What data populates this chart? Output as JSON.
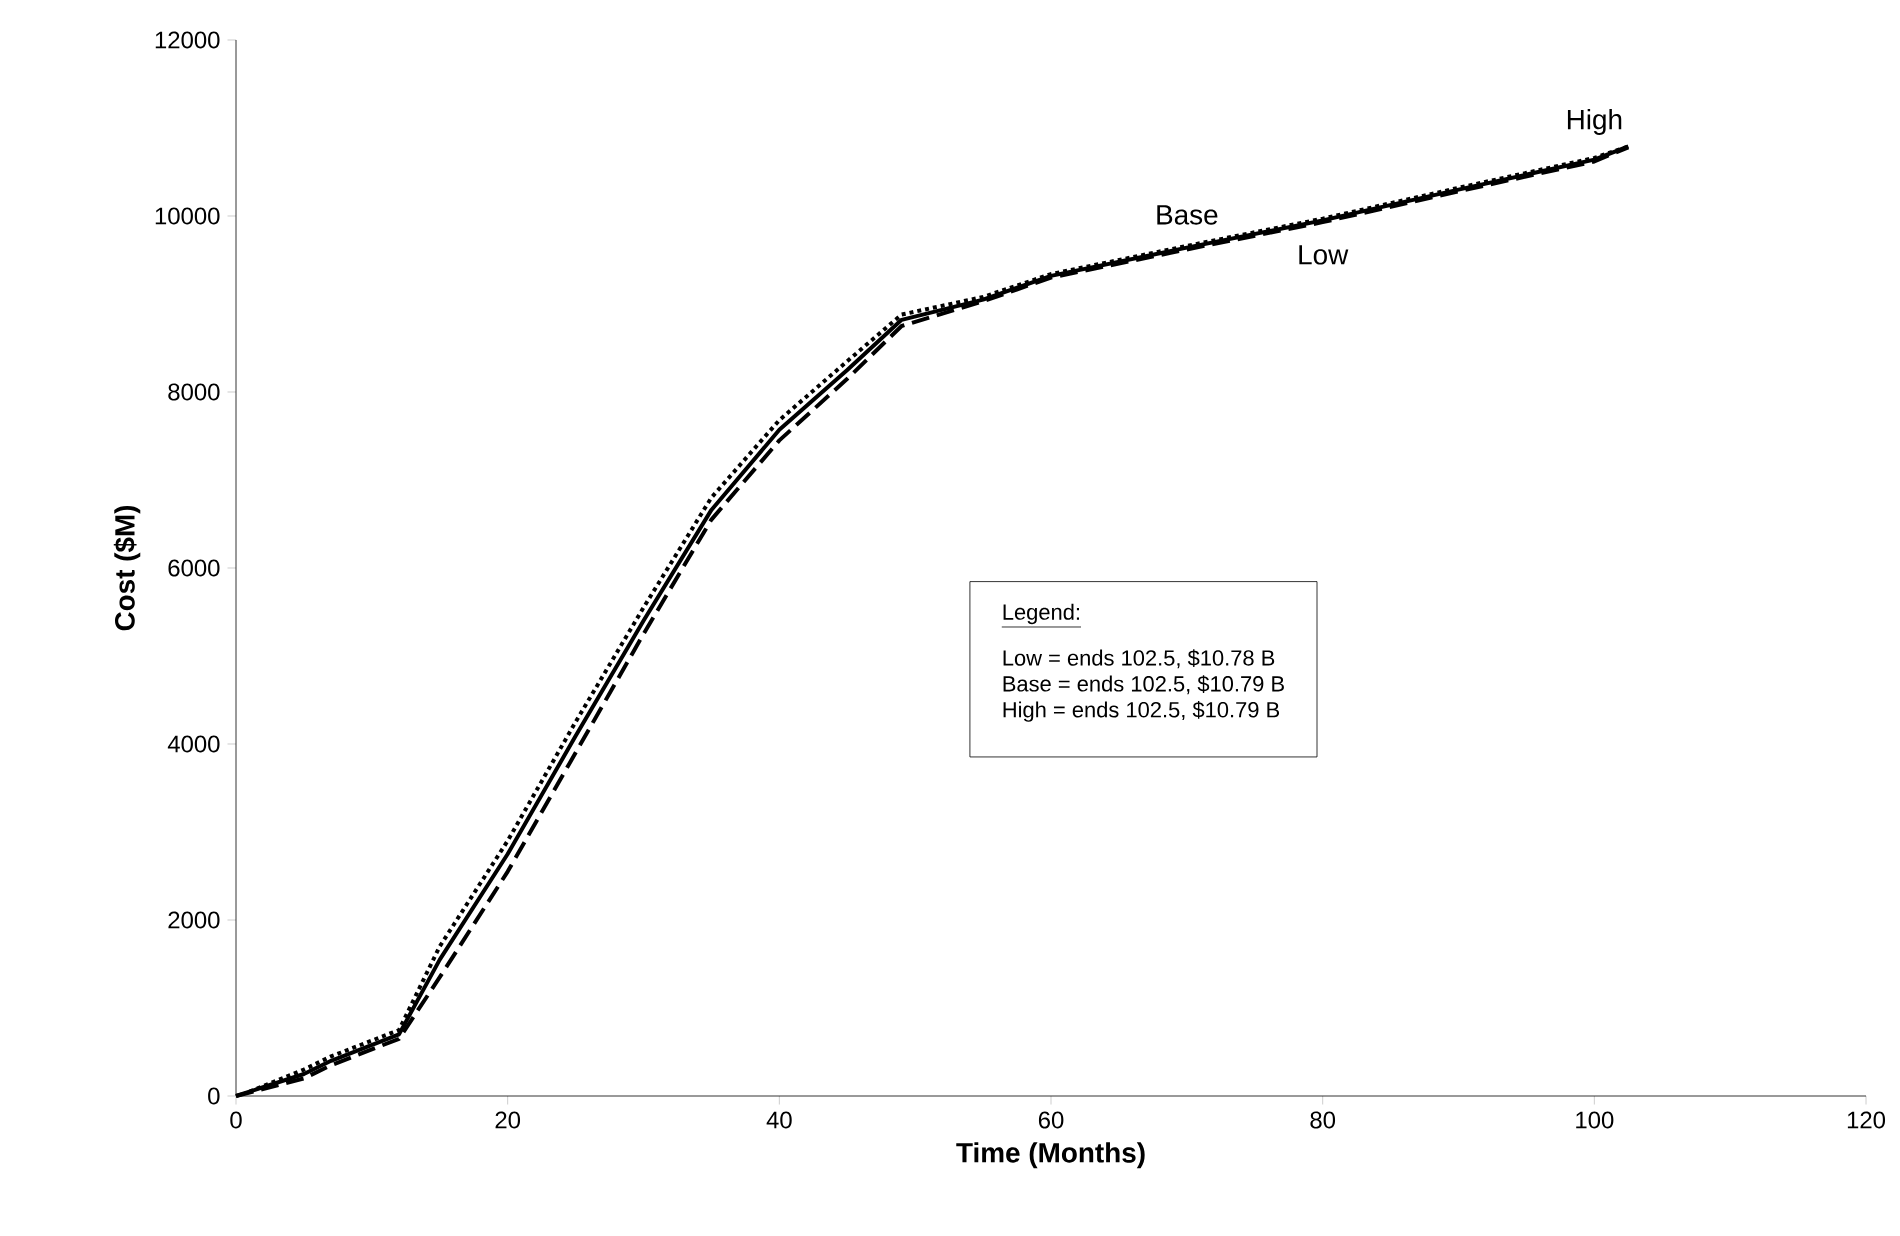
{
  "chart_data": {
    "type": "line",
    "xlabel": "Time (Months)",
    "ylabel": "Cost ($M)",
    "xlim": [
      0,
      120
    ],
    "xticks": [
      0,
      20,
      40,
      60,
      80,
      100,
      120
    ],
    "ylim": [
      0,
      12000
    ],
    "yticks": [
      0,
      2000,
      4000,
      6000,
      8000,
      10000,
      12000
    ],
    "grid": false,
    "legend": false,
    "series": [
      {
        "name": "Low",
        "color": "#000000",
        "line_style": "dashed",
        "x": [
          0,
          5,
          7,
          12,
          15,
          20,
          25,
          30,
          35,
          40,
          45,
          49,
          55,
          60,
          70,
          80,
          90,
          100,
          102.5
        ],
        "values": [
          0,
          200,
          350,
          650,
          1350,
          2550,
          3900,
          5250,
          6550,
          7450,
          8150,
          8750,
          9030,
          9300,
          9620,
          9930,
          10280,
          10620,
          10780
        ]
      },
      {
        "name": "Base",
        "color": "#000000",
        "line_style": "solid",
        "x": [
          0,
          5,
          7,
          12,
          15,
          20,
          25,
          30,
          35,
          40,
          45,
          49,
          55,
          60,
          70,
          80,
          90,
          100,
          102.5
        ],
        "values": [
          0,
          250,
          400,
          700,
          1550,
          2750,
          4090,
          5400,
          6660,
          7570,
          8250,
          8820,
          9050,
          9320,
          9640,
          9950,
          10300,
          10640,
          10790
        ]
      },
      {
        "name": "High",
        "color": "#000000",
        "line_style": "dotted",
        "x": [
          1,
          5,
          7,
          12,
          15,
          20,
          25,
          30,
          35,
          40,
          45,
          49,
          55,
          60,
          70,
          80,
          90,
          100,
          102.5
        ],
        "values": [
          50,
          300,
          450,
          750,
          1700,
          2900,
          4250,
          5550,
          6800,
          7680,
          8350,
          8880,
          9080,
          9340,
          9660,
          9970,
          10320,
          10660,
          10790
        ]
      }
    ],
    "annotations": [
      "Legend:",
      "Low = ends 102.5, $10.78 B",
      "Base = ends 102.5, $10.79 B",
      "High = ends 102.5, $10.79 B"
    ]
  }
}
